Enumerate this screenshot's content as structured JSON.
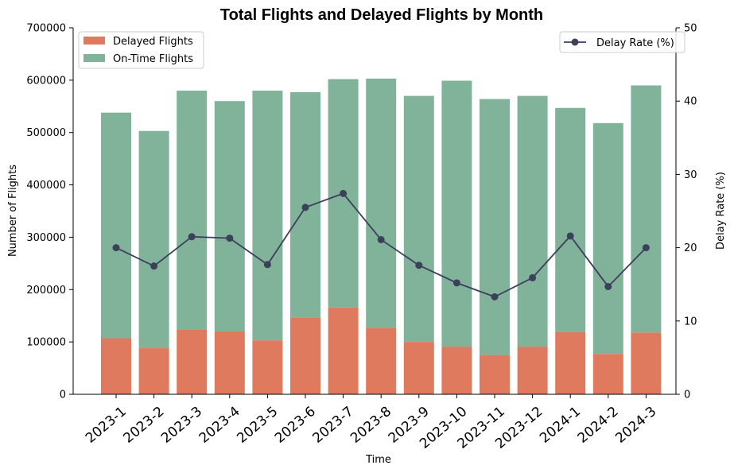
{
  "chart_data": {
    "type": "bar",
    "title": "Total Flights and Delayed Flights by Month",
    "xlabel": "Time",
    "ylabel": "Number of Flights",
    "y2label": "Delay Rate (%)",
    "categories": [
      "2023-1",
      "2023-2",
      "2023-3",
      "2023-4",
      "2023-5",
      "2023-6",
      "2023-7",
      "2023-8",
      "2023-9",
      "2023-10",
      "2023-11",
      "2023-12",
      "2024-1",
      "2024-2",
      "2024-3"
    ],
    "ylim": [
      0,
      700000
    ],
    "y2lim": [
      0,
      50
    ],
    "yticks": [
      0,
      100000,
      200000,
      300000,
      400000,
      500000,
      600000,
      700000
    ],
    "y2ticks": [
      0,
      10,
      20,
      30,
      40,
      50
    ],
    "series": [
      {
        "name": "Delayed Flights",
        "kind": "bar",
        "color": "#e07a5f",
        "values": [
          107000,
          88000,
          124000,
          120000,
          103000,
          147000,
          166000,
          127000,
          100000,
          91000,
          75000,
          91000,
          119000,
          77000,
          118000
        ]
      },
      {
        "name": "On-Time Flights",
        "kind": "bar",
        "color": "#81b29a",
        "values": [
          431000,
          415000,
          456000,
          440000,
          477000,
          430000,
          436000,
          476000,
          470000,
          508000,
          489000,
          479000,
          428000,
          441000,
          472000
        ]
      },
      {
        "name": "Delay Rate (%)",
        "kind": "line",
        "axis": "right",
        "color": "#3d405b",
        "values": [
          20.0,
          17.5,
          21.5,
          21.3,
          17.7,
          25.5,
          27.4,
          21.1,
          17.6,
          15.2,
          13.3,
          15.9,
          21.6,
          14.7,
          20.0
        ]
      }
    ],
    "legend_left_position": "upper-left",
    "legend_right_position": "upper-right",
    "grid": false
  }
}
